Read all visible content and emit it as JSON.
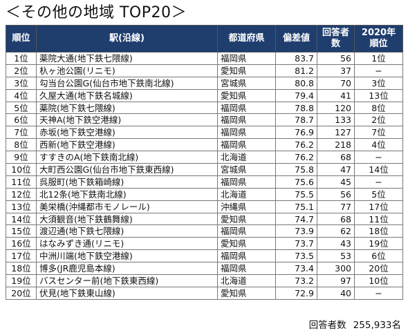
{
  "title": "＜その他の地域 TOP20＞",
  "headers": {
    "rank": "順位",
    "station": "駅(沿線)",
    "prefecture": "都道府県",
    "score": "偏差値",
    "respondents_line1": "回答者",
    "respondents_line2": "数",
    "prev_line1": "2020年",
    "prev_line2": "順位"
  },
  "rows": [
    {
      "rank": "1位",
      "station": "薬院大通(地下鉄七隈線)",
      "prefecture": "福岡県",
      "score": "83.7",
      "respondents": "56",
      "prev": "1位"
    },
    {
      "rank": "2位",
      "station": "杁ヶ池公園(リニモ)",
      "prefecture": "愛知県",
      "score": "81.2",
      "respondents": "37",
      "prev": "−"
    },
    {
      "rank": "3位",
      "station": "勾当台公園G(仙台市地下鉄南北線)",
      "prefecture": "宮城県",
      "score": "80.8",
      "respondents": "70",
      "prev": "3位"
    },
    {
      "rank": "4位",
      "station": "久屋大通(地下鉄名城線)",
      "prefecture": "愛知県",
      "score": "79.4",
      "respondents": "41",
      "prev": "13位"
    },
    {
      "rank": "5位",
      "station": "薬院(地下鉄七隈線)",
      "prefecture": "福岡県",
      "score": "78.8",
      "respondents": "120",
      "prev": "8位"
    },
    {
      "rank": "6位",
      "station": "天神A(地下鉄空港線)",
      "prefecture": "福岡県",
      "score": "78.7",
      "respondents": "133",
      "prev": "2位"
    },
    {
      "rank": "7位",
      "station": "赤坂(地下鉄空港線)",
      "prefecture": "福岡県",
      "score": "76.9",
      "respondents": "127",
      "prev": "7位"
    },
    {
      "rank": "8位",
      "station": "西新(地下鉄空港線)",
      "prefecture": "福岡県",
      "score": "76.2",
      "respondents": "218",
      "prev": "4位"
    },
    {
      "rank": "9位",
      "station": "すすきのA(地下鉄南北線)",
      "prefecture": "北海道",
      "score": "76.2",
      "respondents": "68",
      "prev": "−"
    },
    {
      "rank": "10位",
      "station": "大町西公園G(仙台市地下鉄東西線)",
      "prefecture": "宮城県",
      "score": "75.8",
      "respondents": "47",
      "prev": "14位"
    },
    {
      "rank": "11位",
      "station": "呉服町(地下鉄箱崎線)",
      "prefecture": "福岡県",
      "score": "75.6",
      "respondents": "45",
      "prev": "−"
    },
    {
      "rank": "12位",
      "station": "北12条(地下鉄南北線)",
      "prefecture": "北海道",
      "score": "75.5",
      "respondents": "56",
      "prev": "5位"
    },
    {
      "rank": "13位",
      "station": "美栄橋(沖縄都市モノレール)",
      "prefecture": "沖縄県",
      "score": "75.1",
      "respondents": "77",
      "prev": "17位"
    },
    {
      "rank": "14位",
      "station": "大須観音(地下鉄鶴舞線)",
      "prefecture": "愛知県",
      "score": "74.7",
      "respondents": "68",
      "prev": "11位"
    },
    {
      "rank": "15位",
      "station": "渡辺通(地下鉄七隈線)",
      "prefecture": "福岡県",
      "score": "73.9",
      "respondents": "62",
      "prev": "18位"
    },
    {
      "rank": "16位",
      "station": "はなみずき通(リニモ)",
      "prefecture": "愛知県",
      "score": "73.7",
      "respondents": "43",
      "prev": "19位"
    },
    {
      "rank": "17位",
      "station": "中洲川端(地下鉄空港線)",
      "prefecture": "福岡県",
      "score": "73.5",
      "respondents": "53",
      "prev": "6位"
    },
    {
      "rank": "18位",
      "station": "博多(JR鹿児島本線)",
      "prefecture": "福岡県",
      "score": "73.4",
      "respondents": "300",
      "prev": "20位"
    },
    {
      "rank": "19位",
      "station": "バスセンター前(地下鉄東西線)",
      "prefecture": "北海道",
      "score": "73.2",
      "respondents": "97",
      "prev": "10位"
    },
    {
      "rank": "20位",
      "station": "伏見(地下鉄東山線)",
      "prefecture": "愛知県",
      "score": "72.9",
      "respondents": "40",
      "prev": "−"
    }
  ],
  "footer": {
    "label": "回答者数",
    "value": "255,933名"
  },
  "colors": {
    "header_bg": "#1f3e6e",
    "header_text": "#ffffff"
  }
}
